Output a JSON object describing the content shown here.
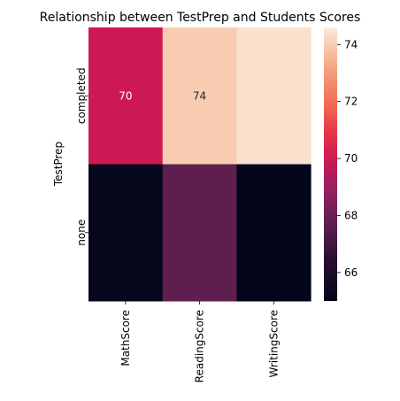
{
  "chart_data": {
    "type": "heatmap",
    "title": "Relationship between TestPrep and Students Scores",
    "xlabel": "",
    "ylabel": "TestPrep",
    "x_categories": [
      "MathScore",
      "ReadingScore",
      "WritingScore"
    ],
    "y_categories": [
      "completed",
      "none"
    ],
    "values": [
      [
        70,
        74,
        74.4
      ],
      [
        65.1,
        67.7,
        65.0
      ]
    ],
    "annotations": [
      [
        "70",
        "74",
        ""
      ],
      [
        "",
        "",
        ""
      ]
    ],
    "colorbar": {
      "range": [
        65.0,
        74.6
      ],
      "ticks": [
        66,
        68,
        70,
        72,
        74
      ],
      "colormap": "rocket"
    }
  }
}
